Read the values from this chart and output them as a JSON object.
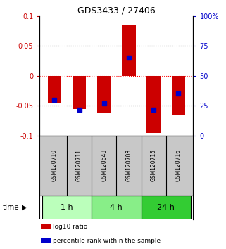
{
  "title": "GDS3433 / 27406",
  "samples": [
    "GSM120710",
    "GSM120711",
    "GSM120648",
    "GSM120708",
    "GSM120715",
    "GSM120716"
  ],
  "log10_ratio": [
    -0.045,
    -0.055,
    -0.063,
    0.085,
    -0.095,
    -0.065
  ],
  "percentile_rank": [
    30,
    22,
    27,
    65,
    22,
    35
  ],
  "ylim_left": [
    -0.1,
    0.1
  ],
  "ylim_right": [
    0,
    100
  ],
  "yticks_left": [
    -0.1,
    -0.05,
    0,
    0.05,
    0.1
  ],
  "yticks_right": [
    0,
    25,
    50,
    75,
    100
  ],
  "ytick_labels_left": [
    "-0.1",
    "-0.05",
    "0",
    "0.05",
    "0.1"
  ],
  "ytick_labels_right": [
    "0",
    "25",
    "50",
    "75",
    "100%"
  ],
  "bar_color": "#cc0000",
  "marker_color": "#0000cc",
  "bar_width": 0.55,
  "time_groups": [
    {
      "label": "1 h",
      "indices": [
        0,
        1
      ],
      "color": "#bbffbb"
    },
    {
      "label": "4 h",
      "indices": [
        2,
        3
      ],
      "color": "#88ee88"
    },
    {
      "label": "24 h",
      "indices": [
        4,
        5
      ],
      "color": "#33cc33"
    }
  ],
  "xlabel_time": "time",
  "legend_items": [
    {
      "label": "log10 ratio",
      "color": "#cc0000"
    },
    {
      "label": "percentile rank within the sample",
      "color": "#0000cc"
    }
  ],
  "background_color": "#ffffff",
  "plot_bg_color": "#ffffff",
  "label_area_bg": "#c8c8c8",
  "left_axis_color": "#cc0000",
  "right_axis_color": "#0000cc"
}
